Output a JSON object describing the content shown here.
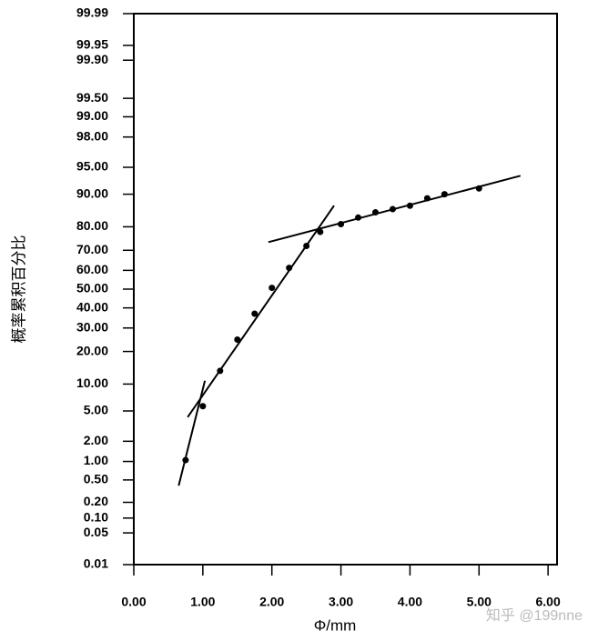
{
  "chart_data": {
    "type": "probability",
    "y_label": "概率累积百分比",
    "x_label": "Φ/mm",
    "watermark": "知乎 @199nne",
    "xlim": [
      0,
      6.13
    ],
    "xticks": [
      {
        "value": 0,
        "label": "0.00"
      },
      {
        "value": 1,
        "label": "1.00"
      },
      {
        "value": 2,
        "label": "2.00"
      },
      {
        "value": 3,
        "label": "3.00"
      },
      {
        "value": 4,
        "label": "4.00"
      },
      {
        "value": 5,
        "label": "5.00"
      },
      {
        "value": 6,
        "label": "6.00"
      }
    ],
    "ylim": [
      0.01,
      99.99
    ],
    "yticks": [
      {
        "value": 0.01,
        "label": "0.01"
      },
      {
        "value": 0.05,
        "label": "0.05"
      },
      {
        "value": 0.1,
        "label": "0.10"
      },
      {
        "value": 0.2,
        "label": "0.20"
      },
      {
        "value": 0.5,
        "label": "0.50"
      },
      {
        "value": 1,
        "label": "1.00"
      },
      {
        "value": 2,
        "label": "2.00"
      },
      {
        "value": 5,
        "label": "5.00"
      },
      {
        "value": 10,
        "label": "10.00"
      },
      {
        "value": 20,
        "label": "20.00"
      },
      {
        "value": 30,
        "label": "30.00"
      },
      {
        "value": 40,
        "label": "40.00"
      },
      {
        "value": 50,
        "label": "50.00"
      },
      {
        "value": 60,
        "label": "60.00"
      },
      {
        "value": 70,
        "label": "70.00"
      },
      {
        "value": 80,
        "label": "80.00"
      },
      {
        "value": 90,
        "label": "90.00"
      },
      {
        "value": 95,
        "label": "95.00"
      },
      {
        "value": 98,
        "label": "98.00"
      },
      {
        "value": 99,
        "label": "99.00"
      },
      {
        "value": 99.5,
        "label": "99.50"
      },
      {
        "value": 99.9,
        "label": "99.90"
      },
      {
        "value": 99.95,
        "label": "99.95"
      },
      {
        "value": 99.99,
        "label": "99.99"
      }
    ],
    "color": "#000000",
    "points": {
      "x": [
        0.75,
        1.0,
        1.25,
        1.5,
        1.75,
        2.0,
        2.25,
        2.5,
        2.7,
        3.0,
        3.25,
        3.5,
        3.75,
        4.0,
        4.25,
        4.5,
        5.0
      ],
      "values": [
        1.05,
        5.7,
        13.5,
        24.8,
        37,
        50.7,
        61.3,
        72,
        78,
        81,
        83.3,
        85,
        86,
        87,
        89,
        90,
        91.3
      ]
    },
    "lines": [
      {
        "x": [
          0.65,
          1.03
        ],
        "values": [
          0.4,
          10.8
        ]
      },
      {
        "x": [
          0.78,
          2.9
        ],
        "values": [
          4.2,
          87
        ]
      },
      {
        "x": [
          1.95,
          5.6
        ],
        "values": [
          73.7,
          93.7
        ]
      }
    ]
  }
}
